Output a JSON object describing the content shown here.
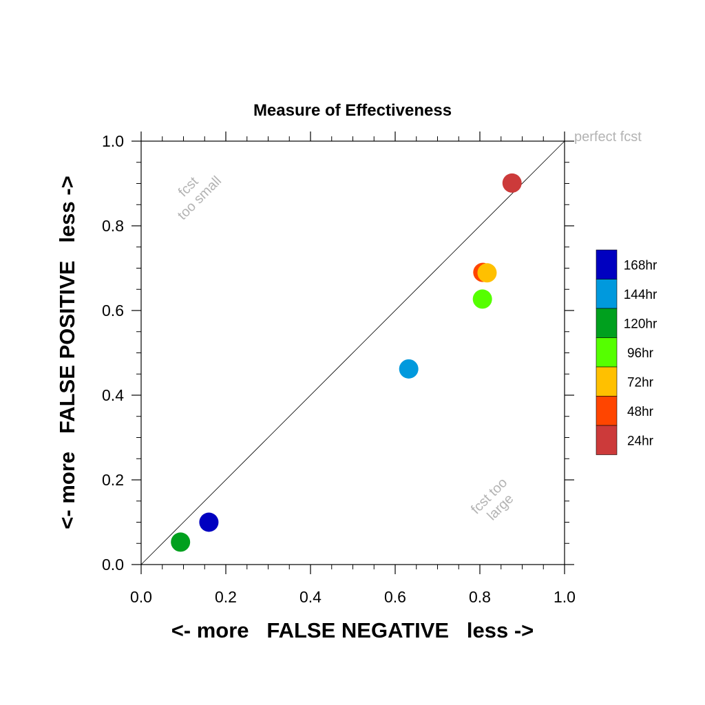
{
  "chart_data": {
    "type": "scatter",
    "title": "Measure of Effectiveness",
    "xlabel": "<- more   FALSE NEGATIVE   less ->",
    "ylabel": "<- more   FALSE POSITIVE   less ->",
    "xlim": [
      0.0,
      1.0
    ],
    "ylim": [
      0.0,
      1.0
    ],
    "xticks": [
      "0.0",
      "0.2",
      "0.4",
      "0.6",
      "0.8",
      "1.0"
    ],
    "yticks": [
      "0.0",
      "0.2",
      "0.4",
      "0.6",
      "0.8",
      "1.0"
    ],
    "grid": false,
    "diagonal_line": true,
    "annotations": {
      "perfect": "perfect fcst",
      "too_small": [
        "fcst",
        "too small"
      ],
      "too_large": [
        "fcst too",
        "large"
      ]
    },
    "legend_position": "right",
    "series": [
      {
        "name": "168hr",
        "color": "#0000c0",
        "x": 0.16,
        "y": 0.1
      },
      {
        "name": "144hr",
        "color": "#0099dd",
        "x": 0.632,
        "y": 0.462
      },
      {
        "name": "120hr",
        "color": "#00a01e",
        "x": 0.093,
        "y": 0.053
      },
      {
        "name": "96hr",
        "color": "#55ff00",
        "x": 0.806,
        "y": 0.627
      },
      {
        "name": "72hr",
        "color": "#ffc000",
        "x": 0.817,
        "y": 0.689
      },
      {
        "name": "48hr",
        "color": "#ff4500",
        "x": 0.807,
        "y": 0.69
      },
      {
        "name": "24hr",
        "color": "#cc3a3a",
        "x": 0.876,
        "y": 0.901
      }
    ],
    "draw_order": [
      "120hr",
      "168hr",
      "144hr",
      "96hr",
      "48hr",
      "72hr",
      "24hr"
    ]
  }
}
